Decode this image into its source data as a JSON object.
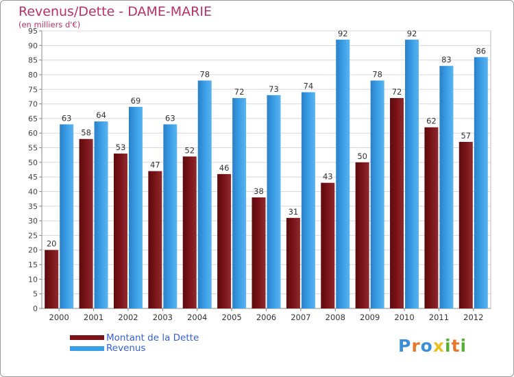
{
  "chart_data": {
    "type": "bar",
    "title": "Revenus/Dette - DAME-MARIE",
    "subtitle": "(en milliers d'€)",
    "categories": [
      "2000",
      "2001",
      "2002",
      "2003",
      "2004",
      "2005",
      "2006",
      "2007",
      "2008",
      "2009",
      "2010",
      "2011",
      "2012"
    ],
    "series": [
      {
        "name": "Montant de la Dette",
        "color": "#7a1418",
        "values": [
          20,
          58,
          53,
          47,
          52,
          46,
          38,
          31,
          43,
          50,
          72,
          62,
          57
        ]
      },
      {
        "name": "Revenus",
        "color": "#3a9ee6",
        "values": [
          63,
          64,
          69,
          63,
          78,
          72,
          73,
          74,
          92,
          78,
          92,
          83,
          86
        ]
      }
    ],
    "ylim": [
      0,
      95
    ],
    "ytick_step": 5,
    "grid": true,
    "legend_position": "bottom-left"
  },
  "logo": {
    "letters": [
      "P",
      "r",
      "o",
      "x",
      "i",
      "t",
      "i"
    ],
    "colors": [
      "#3a8fd8",
      "#e8792a",
      "#3a8fd8",
      "#e8c020",
      "#58b030",
      "#e8792a",
      "#58b030"
    ]
  }
}
